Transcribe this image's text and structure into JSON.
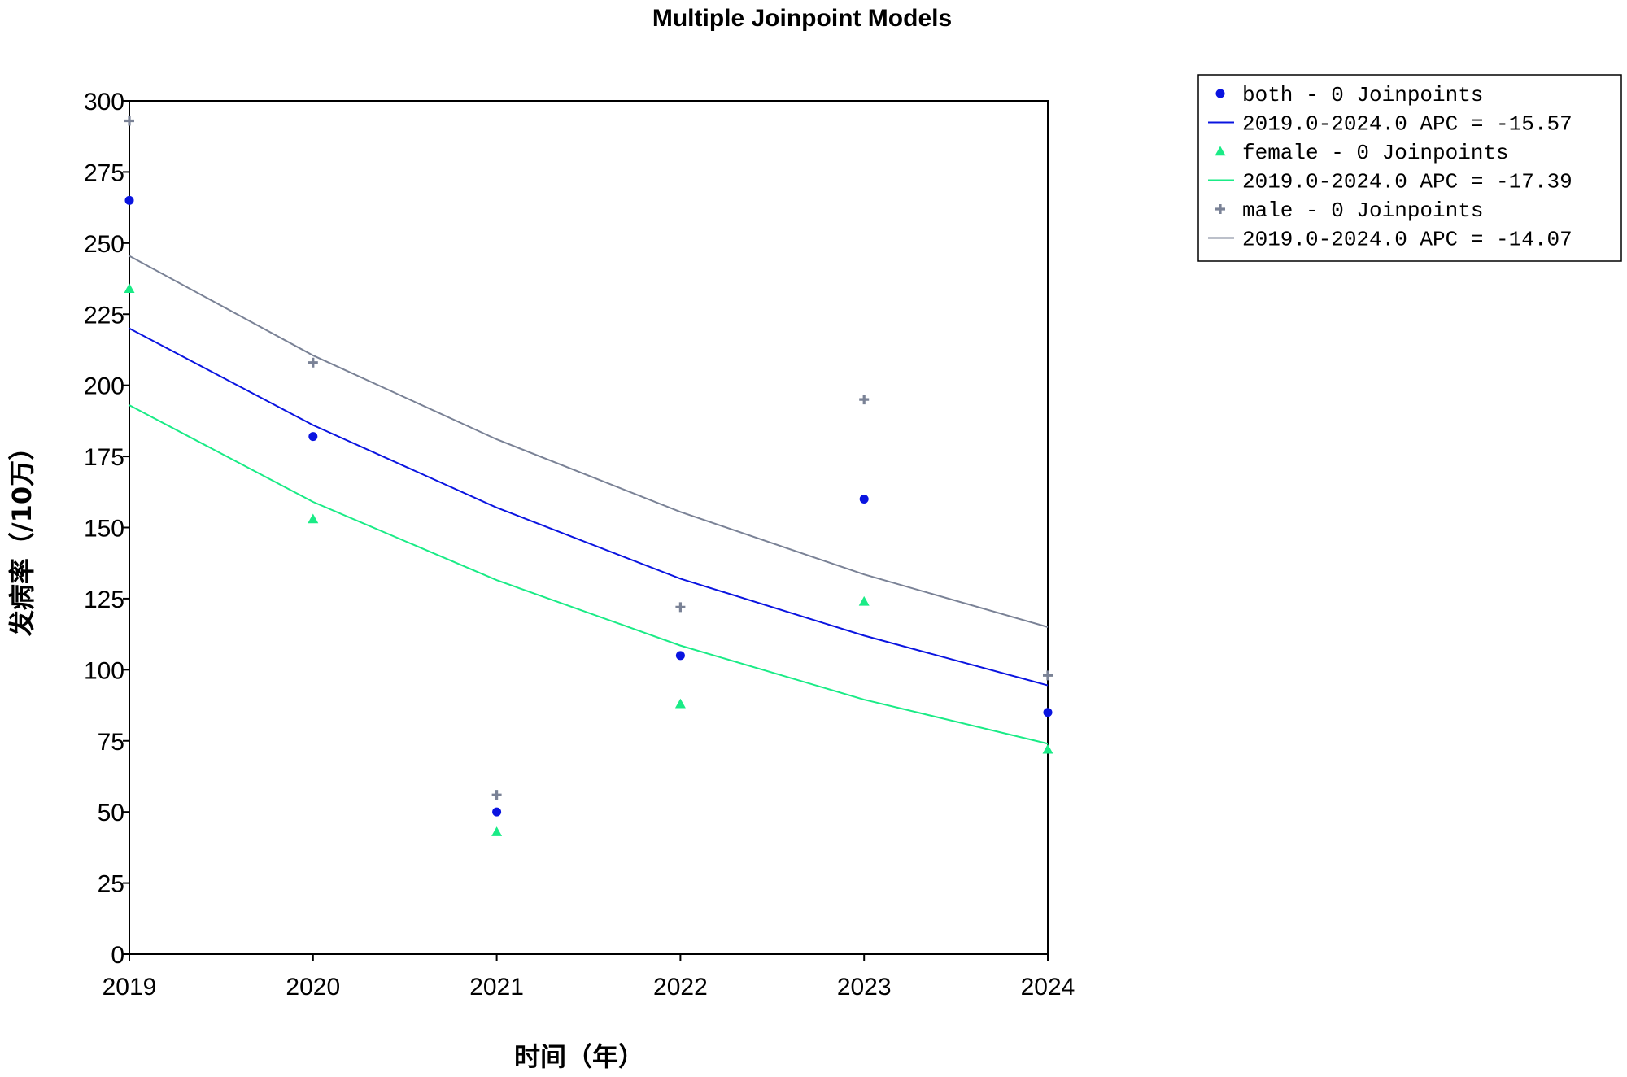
{
  "chart_data": {
    "type": "scatter",
    "title": "Multiple Joinpoint Models",
    "xlabel": "时间（年）",
    "ylabel": "发病率（/10万）",
    "xlim": [
      2019,
      2024
    ],
    "ylim": [
      0,
      300
    ],
    "x_ticks": [
      "2019",
      "2020",
      "2021",
      "2022",
      "2023",
      "2024"
    ],
    "y_ticks": [
      "0",
      "25",
      "50",
      "75",
      "100",
      "125",
      "150",
      "175",
      "200",
      "225",
      "250",
      "275",
      "300"
    ],
    "x": [
      2019,
      2020,
      2021,
      2022,
      2023,
      2024
    ],
    "series": [
      {
        "name": "both",
        "marker": "circle",
        "color": "#0a14e0",
        "observed": [
          265,
          182,
          50,
          105,
          160,
          85
        ],
        "fitted": [
          220,
          186,
          157,
          132,
          112,
          94.5
        ],
        "legend_points": "both - 0 Joinpoints",
        "legend_line": "2019.0-2024.0 APC  = -15.57"
      },
      {
        "name": "female",
        "marker": "triangle",
        "color": "#1aeb86",
        "observed": [
          234,
          153,
          43,
          88,
          124,
          72
        ],
        "fitted": [
          193,
          159,
          131.5,
          108.5,
          89.5,
          74
        ],
        "legend_points": "female - 0 Joinpoints",
        "legend_line": "2019.0-2024.0 APC  = -17.39"
      },
      {
        "name": "male",
        "marker": "plus",
        "color": "#7a8296",
        "observed": [
          293,
          208,
          56,
          122,
          195,
          98
        ],
        "fitted": [
          245.5,
          210.5,
          181,
          155.5,
          133.5,
          115
        ],
        "legend_points": "male - 0 Joinpoints",
        "legend_line": "2019.0-2024.0 APC  = -14.07"
      }
    ],
    "legend_position": "top-right"
  }
}
